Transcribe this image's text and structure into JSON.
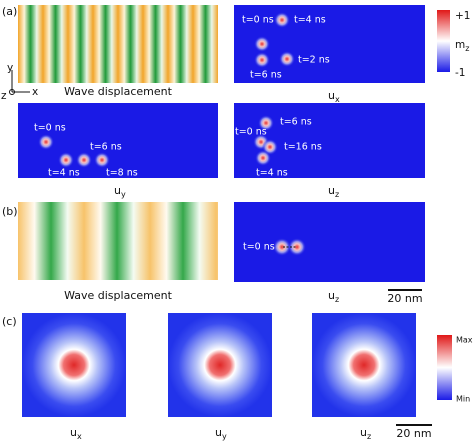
{
  "panel_a": {
    "label": "(a)",
    "wave_caption": "Wave displacement",
    "axes": {
      "y": "y",
      "z": "z",
      "x": "x"
    },
    "colorbar": {
      "top": "+1",
      "title": {
        "main": "m",
        "sub": "z"
      },
      "bottom": "-1"
    },
    "ux": {
      "caption": {
        "main": "u",
        "sub": "x"
      },
      "labels": [
        "t=0 ns",
        "t=4 ns",
        "t=2 ns",
        "t=6 ns"
      ]
    },
    "uy": {
      "caption": {
        "main": "u",
        "sub": "y"
      },
      "labels": [
        "t=0 ns",
        "t=6 ns",
        "t=4 ns",
        "t=8 ns"
      ]
    },
    "uz": {
      "caption": {
        "main": "u",
        "sub": "z"
      },
      "labels": [
        "t=6 ns",
        "t=0 ns",
        "t=16 ns",
        "t=4 ns"
      ]
    }
  },
  "panel_b": {
    "label": "(b)",
    "wave_caption": "Wave displacement",
    "uz": {
      "caption": {
        "main": "u",
        "sub": "z"
      },
      "labels": [
        "t=0 ns"
      ]
    },
    "scale_bar": "20 nm"
  },
  "panel_c": {
    "label": "(c)",
    "captions": [
      {
        "main": "u",
        "sub": "x"
      },
      {
        "main": "u",
        "sub": "y"
      },
      {
        "main": "u",
        "sub": "z"
      }
    ],
    "colorbar": {
      "top": "Max",
      "bottom": "Min"
    },
    "scale_bar": "20 nm"
  }
}
